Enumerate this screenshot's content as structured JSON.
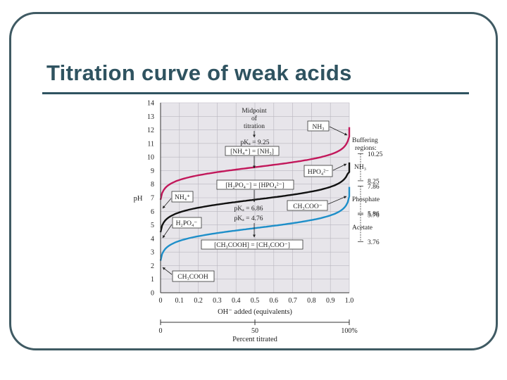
{
  "slide": {
    "title": "Titration curve of weak acids",
    "colors": {
      "title": "#2f5360",
      "frame": "#3f5a63",
      "plot_bg": "#e7e5ea"
    }
  },
  "chart_data": {
    "type": "line",
    "xlabel": "OH⁻ added (equivalents)",
    "ylabel": "pH",
    "xlim": [
      0,
      1.0
    ],
    "ylim": [
      0,
      14
    ],
    "x_ticks": [
      "0",
      "0.1",
      "0.2",
      "0.3",
      "0.4",
      "0.5",
      "0.6",
      "0.7",
      "0.8",
      "0.9",
      "1.0"
    ],
    "y_ticks": [
      "0",
      "1",
      "2",
      "3",
      "4",
      "5",
      "6",
      "7",
      "8",
      "9",
      "10",
      "11",
      "12",
      "13",
      "14"
    ],
    "secondary_axis": {
      "label": "Percent titrated",
      "ticks": [
        "0",
        "50",
        "100%"
      ]
    },
    "series": [
      {
        "name": "NH₄⁺",
        "color": "#c2185b",
        "pKa": 9.25,
        "ph_start": 6.3,
        "ph_end": 11.5
      },
      {
        "name": "H₂PO₄⁻",
        "color": "#111111",
        "pKa": 6.86,
        "ph_start": 4.0,
        "ph_end": 8.9
      },
      {
        "name": "CH₃COOH",
        "color": "#1e8fc9",
        "pKa": 4.76,
        "ph_start": 2.0,
        "ph_end": 7.1
      }
    ],
    "annotations": {
      "midpoint": [
        "Midpoint",
        "of",
        "titration"
      ],
      "pka_nh3": "pKₐ = 9.25",
      "eq_nh": "[NH₄⁺] = [NH₃]",
      "eq_po": "[H₂PO₄⁻] = [HPO₄²⁻]",
      "pka_po": "pKₐ = 6.86",
      "pka_ac": "pKₐ = 4.76",
      "eq_ac": "[CH₃COOH] = [CH₃COO⁻]",
      "box_nh3": "NH₃",
      "box_hpo4": "HPO₄²⁻",
      "box_ch3coo": "CH₃COO⁻",
      "box_nh4": "NH₄⁺",
      "box_h2po4": "H₂PO₄⁻",
      "box_ch3cooh": "CH₃COOH"
    },
    "buffering": {
      "title": [
        "Buffering",
        "regions:"
      ],
      "groups": [
        {
          "name": "NH₃",
          "high": 10.25,
          "low": 8.25,
          "high_label": "10.25",
          "low_label": "8.25"
        },
        {
          "name": "Phosphate",
          "high": 7.86,
          "low": 5.86,
          "high_label": "7.86",
          "low_label": "5.86"
        },
        {
          "name": "Acetate",
          "high": 5.76,
          "low": 3.76,
          "high_label": "5.76",
          "low_label": "3.76"
        }
      ]
    }
  }
}
